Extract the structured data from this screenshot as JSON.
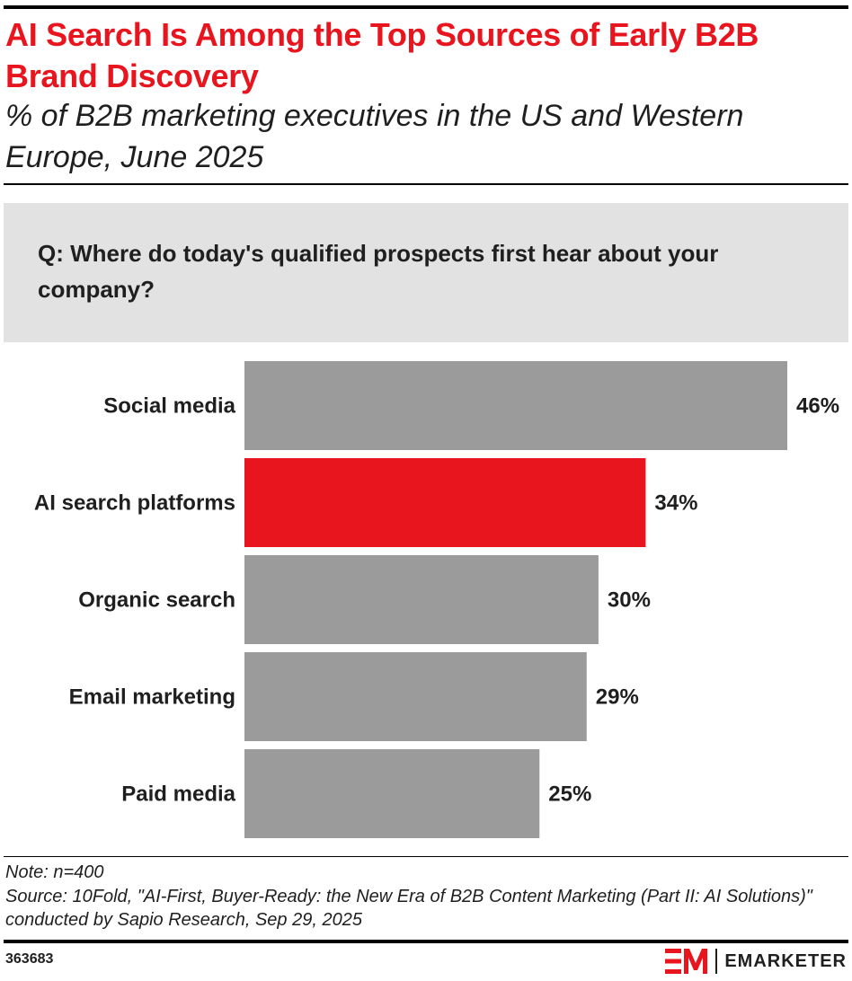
{
  "header": {
    "title": "AI Search Is Among the Top Sources of Early B2B Brand Discovery",
    "subtitle": "% of B2B marketing executives in the US and Western Europe, June 2025"
  },
  "question": "Q: Where do today's qualified prospects first hear about your company?",
  "colors": {
    "title": "#e8141e",
    "bar_default": "#9b9b9b",
    "bar_highlight": "#e8141e",
    "question_bg": "#e2e2e2"
  },
  "chart_data": {
    "type": "bar",
    "orientation": "horizontal",
    "categories": [
      "Social media",
      "AI search platforms",
      "Organic search",
      "Email marketing",
      "Paid media"
    ],
    "values": [
      46,
      34,
      30,
      29,
      25
    ],
    "value_labels": [
      "46%",
      "34%",
      "30%",
      "29%",
      "25%"
    ],
    "highlight_index": 1,
    "xlim": [
      0,
      46
    ],
    "grid": false,
    "legend": "none"
  },
  "footer": {
    "note": "Note: n=400",
    "source": "Source: 10Fold, \"AI-First, Buyer-Ready: the New Era of B2B Content Marketing (Part II: AI Solutions)\" conducted by Sapio Research, Sep 29, 2025",
    "chart_id": "363683",
    "brand": "EMARKETER"
  }
}
